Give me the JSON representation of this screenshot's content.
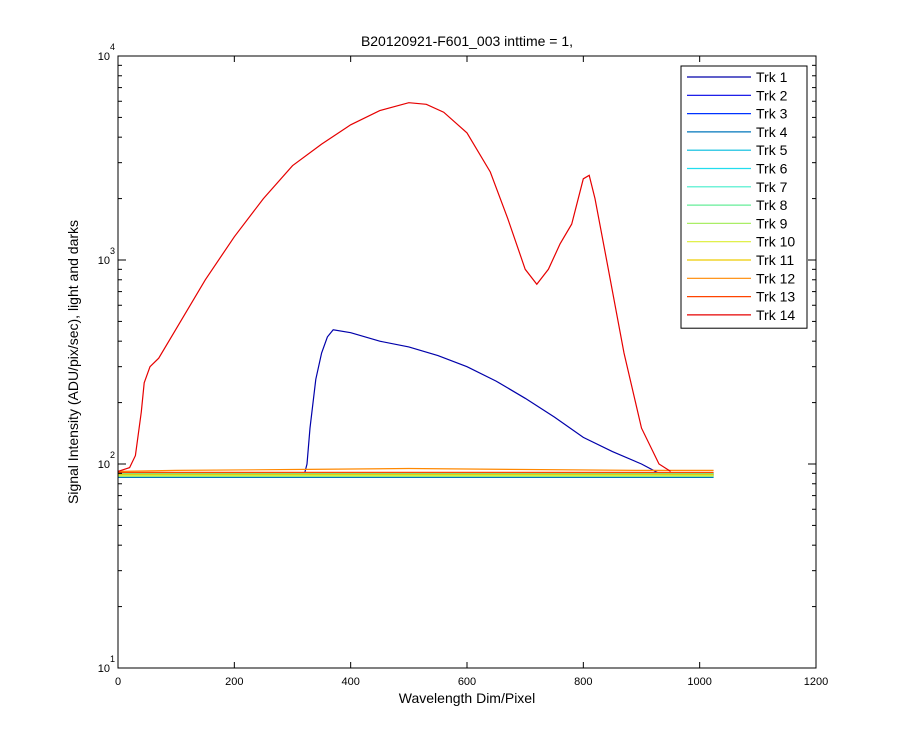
{
  "chart_data": {
    "type": "line",
    "title": "B20120921-F601_003 inttime = 1,",
    "xlabel": "Wavelength Dim/Pixel",
    "ylabel": "Signal Intensity (ADU/pix/sec), light and darks",
    "xlim": [
      0,
      1200
    ],
    "ylim": [
      10,
      10000
    ],
    "yscale": "log",
    "grid": false,
    "legend_position": "top-right",
    "x_ticks": [
      {
        "value": 0,
        "label": "0"
      },
      {
        "value": 200,
        "label": "200"
      },
      {
        "value": 400,
        "label": "400"
      },
      {
        "value": 600,
        "label": "600"
      },
      {
        "value": 800,
        "label": "800"
      },
      {
        "value": 1000,
        "label": "1000"
      },
      {
        "value": 1200,
        "label": "1200"
      }
    ],
    "y_ticks": [
      {
        "value": 10,
        "base": "10",
        "exp": "1"
      },
      {
        "value": 100,
        "base": "10",
        "exp": "2"
      },
      {
        "value": 1000,
        "base": "10",
        "exp": "3"
      },
      {
        "value": 10000,
        "base": "10",
        "exp": "4"
      }
    ],
    "series": [
      {
        "name": "Trk 1",
        "color": "#0000AA",
        "points": [
          [
            0,
            88
          ],
          [
            320,
            88
          ],
          [
            325,
            100
          ],
          [
            330,
            150
          ],
          [
            340,
            260
          ],
          [
            350,
            350
          ],
          [
            360,
            420
          ],
          [
            370,
            455
          ],
          [
            400,
            440
          ],
          [
            450,
            400
          ],
          [
            500,
            375
          ],
          [
            550,
            340
          ],
          [
            600,
            300
          ],
          [
            650,
            255
          ],
          [
            700,
            210
          ],
          [
            750,
            170
          ],
          [
            800,
            135
          ],
          [
            850,
            115
          ],
          [
            900,
            100
          ],
          [
            930,
            90
          ],
          [
            950,
            88
          ],
          [
            1024,
            88
          ]
        ]
      },
      {
        "name": "Trk 2",
        "color": "#0000E6",
        "points": [
          [
            0,
            89
          ],
          [
            1024,
            89
          ]
        ]
      },
      {
        "name": "Trk 3",
        "color": "#0033FF",
        "points": [
          [
            0,
            90
          ],
          [
            1024,
            90
          ]
        ]
      },
      {
        "name": "Trk 4",
        "color": "#0077BB",
        "points": [
          [
            0,
            86
          ],
          [
            1024,
            86
          ]
        ]
      },
      {
        "name": "Trk 5",
        "color": "#00BBDD",
        "points": [
          [
            0,
            87
          ],
          [
            1024,
            87
          ]
        ]
      },
      {
        "name": "Trk 6",
        "color": "#22DDEE",
        "points": [
          [
            0,
            88
          ],
          [
            1024,
            88
          ]
        ]
      },
      {
        "name": "Trk 7",
        "color": "#44EECC",
        "points": [
          [
            0,
            89
          ],
          [
            1024,
            89
          ]
        ]
      },
      {
        "name": "Trk 8",
        "color": "#66EE99",
        "points": [
          [
            0,
            90
          ],
          [
            1024,
            90
          ]
        ]
      },
      {
        "name": "Trk 9",
        "color": "#AAEE66",
        "points": [
          [
            0,
            87
          ],
          [
            1024,
            87
          ]
        ]
      },
      {
        "name": "Trk 10",
        "color": "#DDEE33",
        "points": [
          [
            0,
            88
          ],
          [
            1024,
            88
          ]
        ]
      },
      {
        "name": "Trk 11",
        "color": "#EECC00",
        "points": [
          [
            0,
            89
          ],
          [
            1024,
            89
          ]
        ]
      },
      {
        "name": "Trk 12",
        "color": "#FF8800",
        "points": [
          [
            0,
            92
          ],
          [
            100,
            93
          ],
          [
            300,
            94
          ],
          [
            500,
            95
          ],
          [
            700,
            94
          ],
          [
            900,
            93
          ],
          [
            1024,
            93
          ]
        ]
      },
      {
        "name": "Trk 13",
        "color": "#FF4400",
        "points": [
          [
            0,
            91
          ],
          [
            1024,
            91
          ]
        ]
      },
      {
        "name": "Trk 14",
        "color": "#E60000",
        "points": [
          [
            0,
            92
          ],
          [
            20,
            96
          ],
          [
            30,
            110
          ],
          [
            40,
            180
          ],
          [
            45,
            250
          ],
          [
            55,
            300
          ],
          [
            70,
            330
          ],
          [
            100,
            460
          ],
          [
            150,
            800
          ],
          [
            200,
            1300
          ],
          [
            250,
            2000
          ],
          [
            300,
            2900
          ],
          [
            350,
            3700
          ],
          [
            400,
            4600
          ],
          [
            450,
            5400
          ],
          [
            500,
            5900
          ],
          [
            530,
            5800
          ],
          [
            560,
            5300
          ],
          [
            600,
            4200
          ],
          [
            640,
            2700
          ],
          [
            670,
            1600
          ],
          [
            700,
            900
          ],
          [
            720,
            760
          ],
          [
            740,
            900
          ],
          [
            760,
            1200
          ],
          [
            780,
            1500
          ],
          [
            800,
            2500
          ],
          [
            810,
            2600
          ],
          [
            820,
            2000
          ],
          [
            840,
            1000
          ],
          [
            870,
            350
          ],
          [
            900,
            150
          ],
          [
            930,
            100
          ],
          [
            950,
            92
          ]
        ]
      }
    ]
  }
}
